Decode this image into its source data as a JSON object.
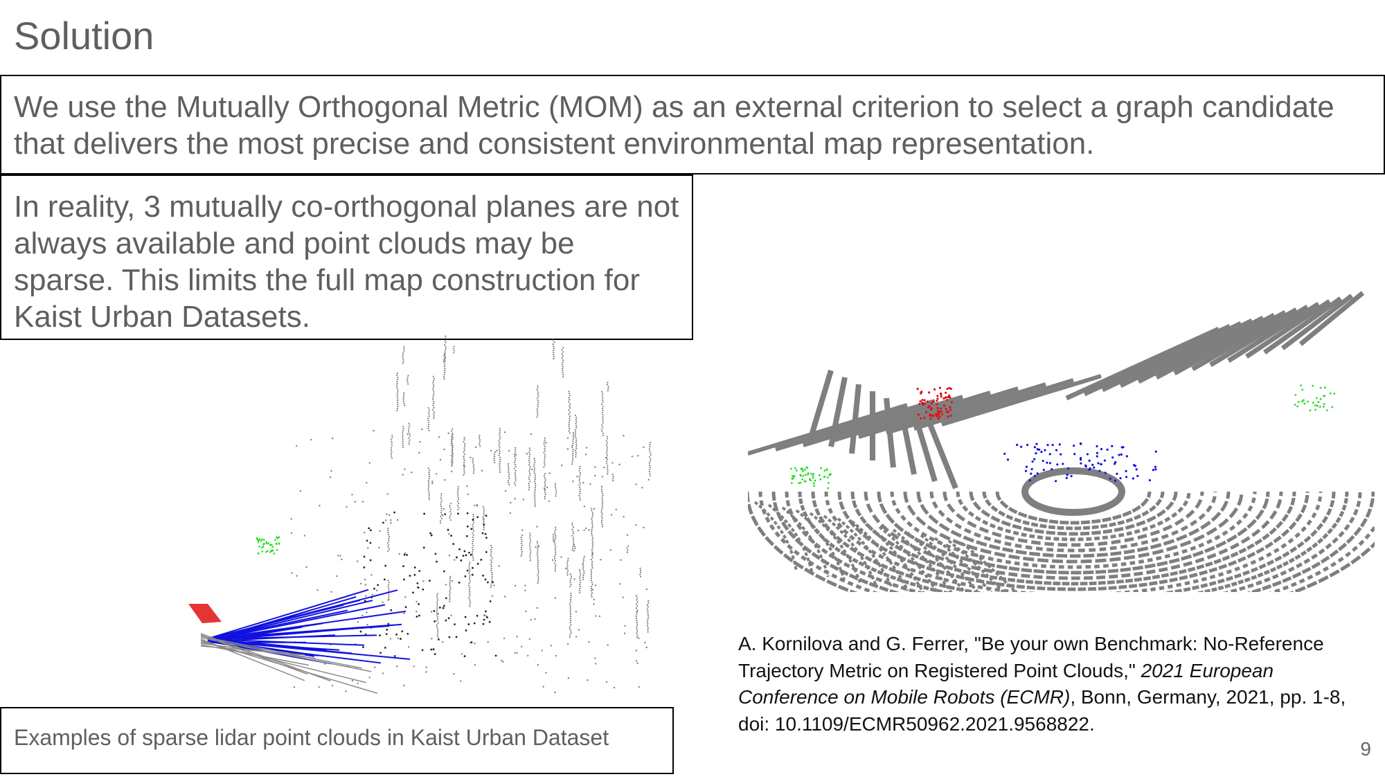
{
  "slide": {
    "title": "Solution",
    "statement": "We use the Mutually Orthogonal Metric (MOM) as an external criterion to select a graph candidate that delivers the most precise and consistent environmental map representation.",
    "limitation": "In reality, 3 mutually co-orthogonal planes are not always available and point clouds may be sparse. This limits the full map construction for Kaist Urban Datasets.",
    "caption": "Examples of sparse lidar point clouds in Kaist Urban Dataset",
    "reference": {
      "part1": "A. Kornilova and G. Ferrer, \"Be your own Benchmark: No-Reference Trajectory Metric on Registered Point Clouds,\" ",
      "venue": "2021 European Conference on Mobile Robots (ECMR)",
      "part2": ", Bonn, Germany, 2021, pp. 1-8, doi: 10.1109/ECMR50962.2021.9568822."
    },
    "page_number": "9"
  },
  "colors": {
    "text": "#5f5f5f",
    "border": "#000000",
    "cloud_gray": "#7f7f7f",
    "plane_red": "#e01010",
    "plane_green": "#22dd22",
    "plane_blue": "#1010e0"
  }
}
